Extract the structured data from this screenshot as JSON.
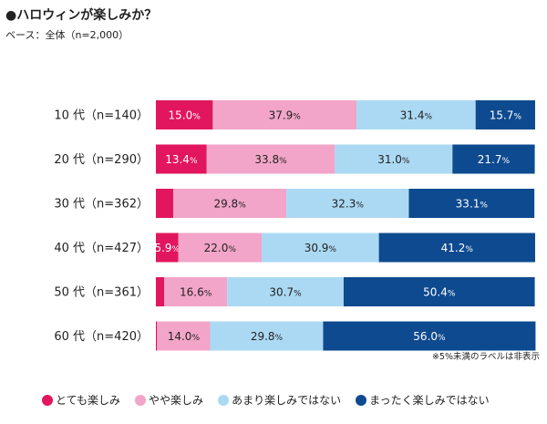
{
  "chart_data": {
    "type": "bar",
    "orientation": "horizontal",
    "stacked": true,
    "title": "●ハロウィンが楽しみか？",
    "subtitle": "ベース：全体（n=2,000）",
    "note": "※5%未満のラベルは非表示",
    "unit": "%",
    "xlim": [
      0,
      100
    ],
    "categories": [
      "10 代（n=140）",
      "20 代（n=290）",
      "30 代（n=362）",
      "40 代（n=427）",
      "50 代（n=361）",
      "60 代（n=420）"
    ],
    "series": [
      {
        "name": "とても楽しみ",
        "color": "#e2165e",
        "values": [
          15.0,
          13.4,
          4.6,
          5.9,
          2.2,
          0.3
        ]
      },
      {
        "name": "やや楽しみ",
        "color": "#f2a5c8",
        "values": [
          37.9,
          33.8,
          29.8,
          22.0,
          16.6,
          14.0
        ]
      },
      {
        "name": "あまり楽しみではない",
        "color": "#abd9f3",
        "values": [
          31.4,
          31.0,
          32.3,
          30.9,
          30.7,
          29.8
        ]
      },
      {
        "name": "まったく楽しみではない",
        "color": "#0e4a8f",
        "values": [
          15.7,
          21.7,
          33.1,
          41.2,
          50.4,
          56.0
        ]
      }
    ],
    "labels": [
      [
        "15.0%",
        "37.9%",
        "31.4%",
        "15.7%"
      ],
      [
        "13.4%",
        "33.8%",
        "31.0%",
        "21.7%"
      ],
      [
        "",
        "29.8%",
        "32.3%",
        "33.1%"
      ],
      [
        "5.9%",
        "22.0%",
        "30.9%",
        "41.2%"
      ],
      [
        "",
        "16.6%",
        "30.7%",
        "50.4%"
      ],
      [
        "",
        "14.0%",
        "29.8%",
        "56.0%"
      ]
    ]
  }
}
